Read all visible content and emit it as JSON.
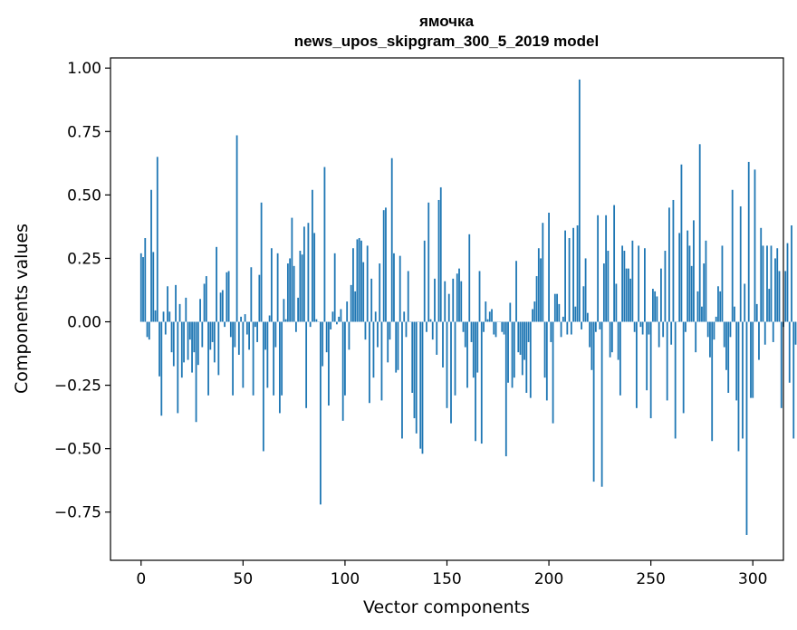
{
  "chart_data": {
    "type": "bar",
    "title": "ямочка",
    "subtitle": "news_upos_skipgram_300_5_2019 model",
    "xlabel": "Vector components",
    "ylabel": "Components values",
    "xlim": [
      -15,
      315
    ],
    "ylim": [
      -0.94,
      1.04
    ],
    "x_ticks": [
      0,
      50,
      100,
      150,
      200,
      250,
      300
    ],
    "x_tick_labels": [
      "0",
      "50",
      "100",
      "150",
      "200",
      "250",
      "300"
    ],
    "y_ticks": [
      1.0,
      0.75,
      0.5,
      0.25,
      0.0,
      -0.25,
      -0.5,
      -0.75
    ],
    "y_tick_labels": [
      "1.00",
      "0.75",
      "0.50",
      "0.25",
      "0.00",
      "−0.25",
      "−0.50",
      "−0.75"
    ],
    "bar_color": "#1f77b4",
    "grid": false,
    "values": [
      0.27,
      0.255,
      0.33,
      -0.06,
      -0.07,
      0.52,
      0.275,
      0.045,
      0.65,
      -0.215,
      -0.37,
      0.04,
      -0.05,
      0.14,
      0.04,
      -0.12,
      -0.175,
      0.145,
      -0.36,
      0.07,
      -0.22,
      -0.16,
      0.095,
      -0.15,
      -0.07,
      -0.2,
      -0.12,
      -0.395,
      -0.17,
      0.09,
      -0.1,
      0.15,
      0.18,
      -0.29,
      -0.11,
      -0.08,
      -0.16,
      0.295,
      -0.21,
      0.115,
      0.125,
      -0.02,
      0.195,
      0.2,
      -0.06,
      -0.29,
      -0.1,
      0.735,
      -0.13,
      0.02,
      -0.26,
      0.03,
      -0.05,
      -0.11,
      0.215,
      -0.29,
      -0.02,
      -0.08,
      0.185,
      0.47,
      -0.51,
      -0.11,
      -0.26,
      0.025,
      0.29,
      -0.29,
      -0.1,
      0.27,
      -0.36,
      -0.29,
      0.09,
      0.01,
      0.23,
      0.25,
      0.41,
      0.22,
      -0.04,
      0.095,
      0.28,
      0.265,
      0.375,
      -0.34,
      0.39,
      -0.02,
      0.52,
      0.35,
      0.01,
      0.0,
      -0.72,
      -0.175,
      0.61,
      -0.12,
      -0.33,
      -0.03,
      0.04,
      0.27,
      -0.01,
      0.02,
      0.05,
      -0.39,
      -0.29,
      0.08,
      -0.11,
      0.145,
      0.29,
      0.12,
      0.325,
      0.33,
      0.32,
      0.235,
      -0.07,
      0.3,
      -0.32,
      0.17,
      -0.22,
      0.04,
      -0.1,
      0.23,
      -0.31,
      0.44,
      0.45,
      -0.16,
      -0.07,
      0.645,
      0.27,
      -0.2,
      -0.19,
      0.26,
      -0.46,
      0.04,
      -0.06,
      0.2,
      0.0,
      -0.28,
      -0.38,
      -0.44,
      0.0,
      -0.5,
      -0.52,
      0.32,
      -0.04,
      0.47,
      0.01,
      -0.07,
      0.17,
      -0.13,
      0.48,
      0.53,
      -0.18,
      0.16,
      -0.34,
      0.11,
      -0.4,
      0.17,
      -0.29,
      0.19,
      0.21,
      0.16,
      -0.04,
      -0.1,
      -0.26,
      0.345,
      -0.08,
      -0.22,
      -0.47,
      -0.2,
      0.2,
      -0.48,
      -0.04,
      0.08,
      0.01,
      0.04,
      0.05,
      -0.05,
      -0.06,
      0.0,
      0.0,
      -0.04,
      -0.05,
      -0.53,
      -0.24,
      0.075,
      -0.26,
      -0.22,
      0.24,
      -0.12,
      -0.13,
      -0.21,
      -0.15,
      -0.28,
      -0.08,
      -0.3,
      0.05,
      0.08,
      0.18,
      0.29,
      0.25,
      0.39,
      -0.22,
      -0.31,
      0.43,
      -0.08,
      -0.4,
      0.11,
      0.11,
      0.07,
      -0.06,
      0.02,
      0.36,
      -0.05,
      0.33,
      -0.05,
      0.37,
      0.06,
      0.38,
      0.955,
      -0.03,
      0.14,
      0.25,
      0.035,
      -0.1,
      -0.19,
      -0.63,
      -0.04,
      0.42,
      -0.03,
      -0.65,
      0.23,
      0.42,
      0.28,
      -0.14,
      -0.12,
      0.46,
      0.15,
      -0.15,
      -0.29,
      0.3,
      0.28,
      0.21,
      0.21,
      0.17,
      0.32,
      -0.04,
      -0.34,
      0.3,
      -0.02,
      -0.05,
      0.29,
      -0.27,
      -0.05,
      -0.38,
      0.13,
      0.12,
      0.1,
      -0.1,
      0.21,
      -0.06,
      0.28,
      -0.31,
      0.45,
      -0.09,
      0.48,
      -0.46,
      0.0,
      0.35,
      0.62,
      -0.36,
      -0.04,
      0.36,
      0.3,
      0.22,
      0.4,
      -0.12,
      0.12,
      0.7,
      0.06,
      0.23,
      0.32,
      -0.06,
      -0.14,
      -0.47,
      -0.07,
      0.02,
      0.14,
      0.12,
      0.3,
      -0.1,
      -0.19,
      -0.28,
      -0.06,
      0.52,
      0.06,
      -0.31,
      -0.51,
      0.455,
      -0.46,
      0.15,
      -0.84,
      0.63,
      -0.3,
      -0.3,
      0.6,
      0.07,
      -0.15,
      0.37,
      0.3,
      -0.09,
      0.3,
      0.13,
      0.3,
      -0.08,
      0.25,
      0.29,
      0.2,
      -0.34,
      -0.02,
      0.2,
      0.31,
      -0.24,
      0.38,
      -0.46,
      -0.09
    ]
  }
}
